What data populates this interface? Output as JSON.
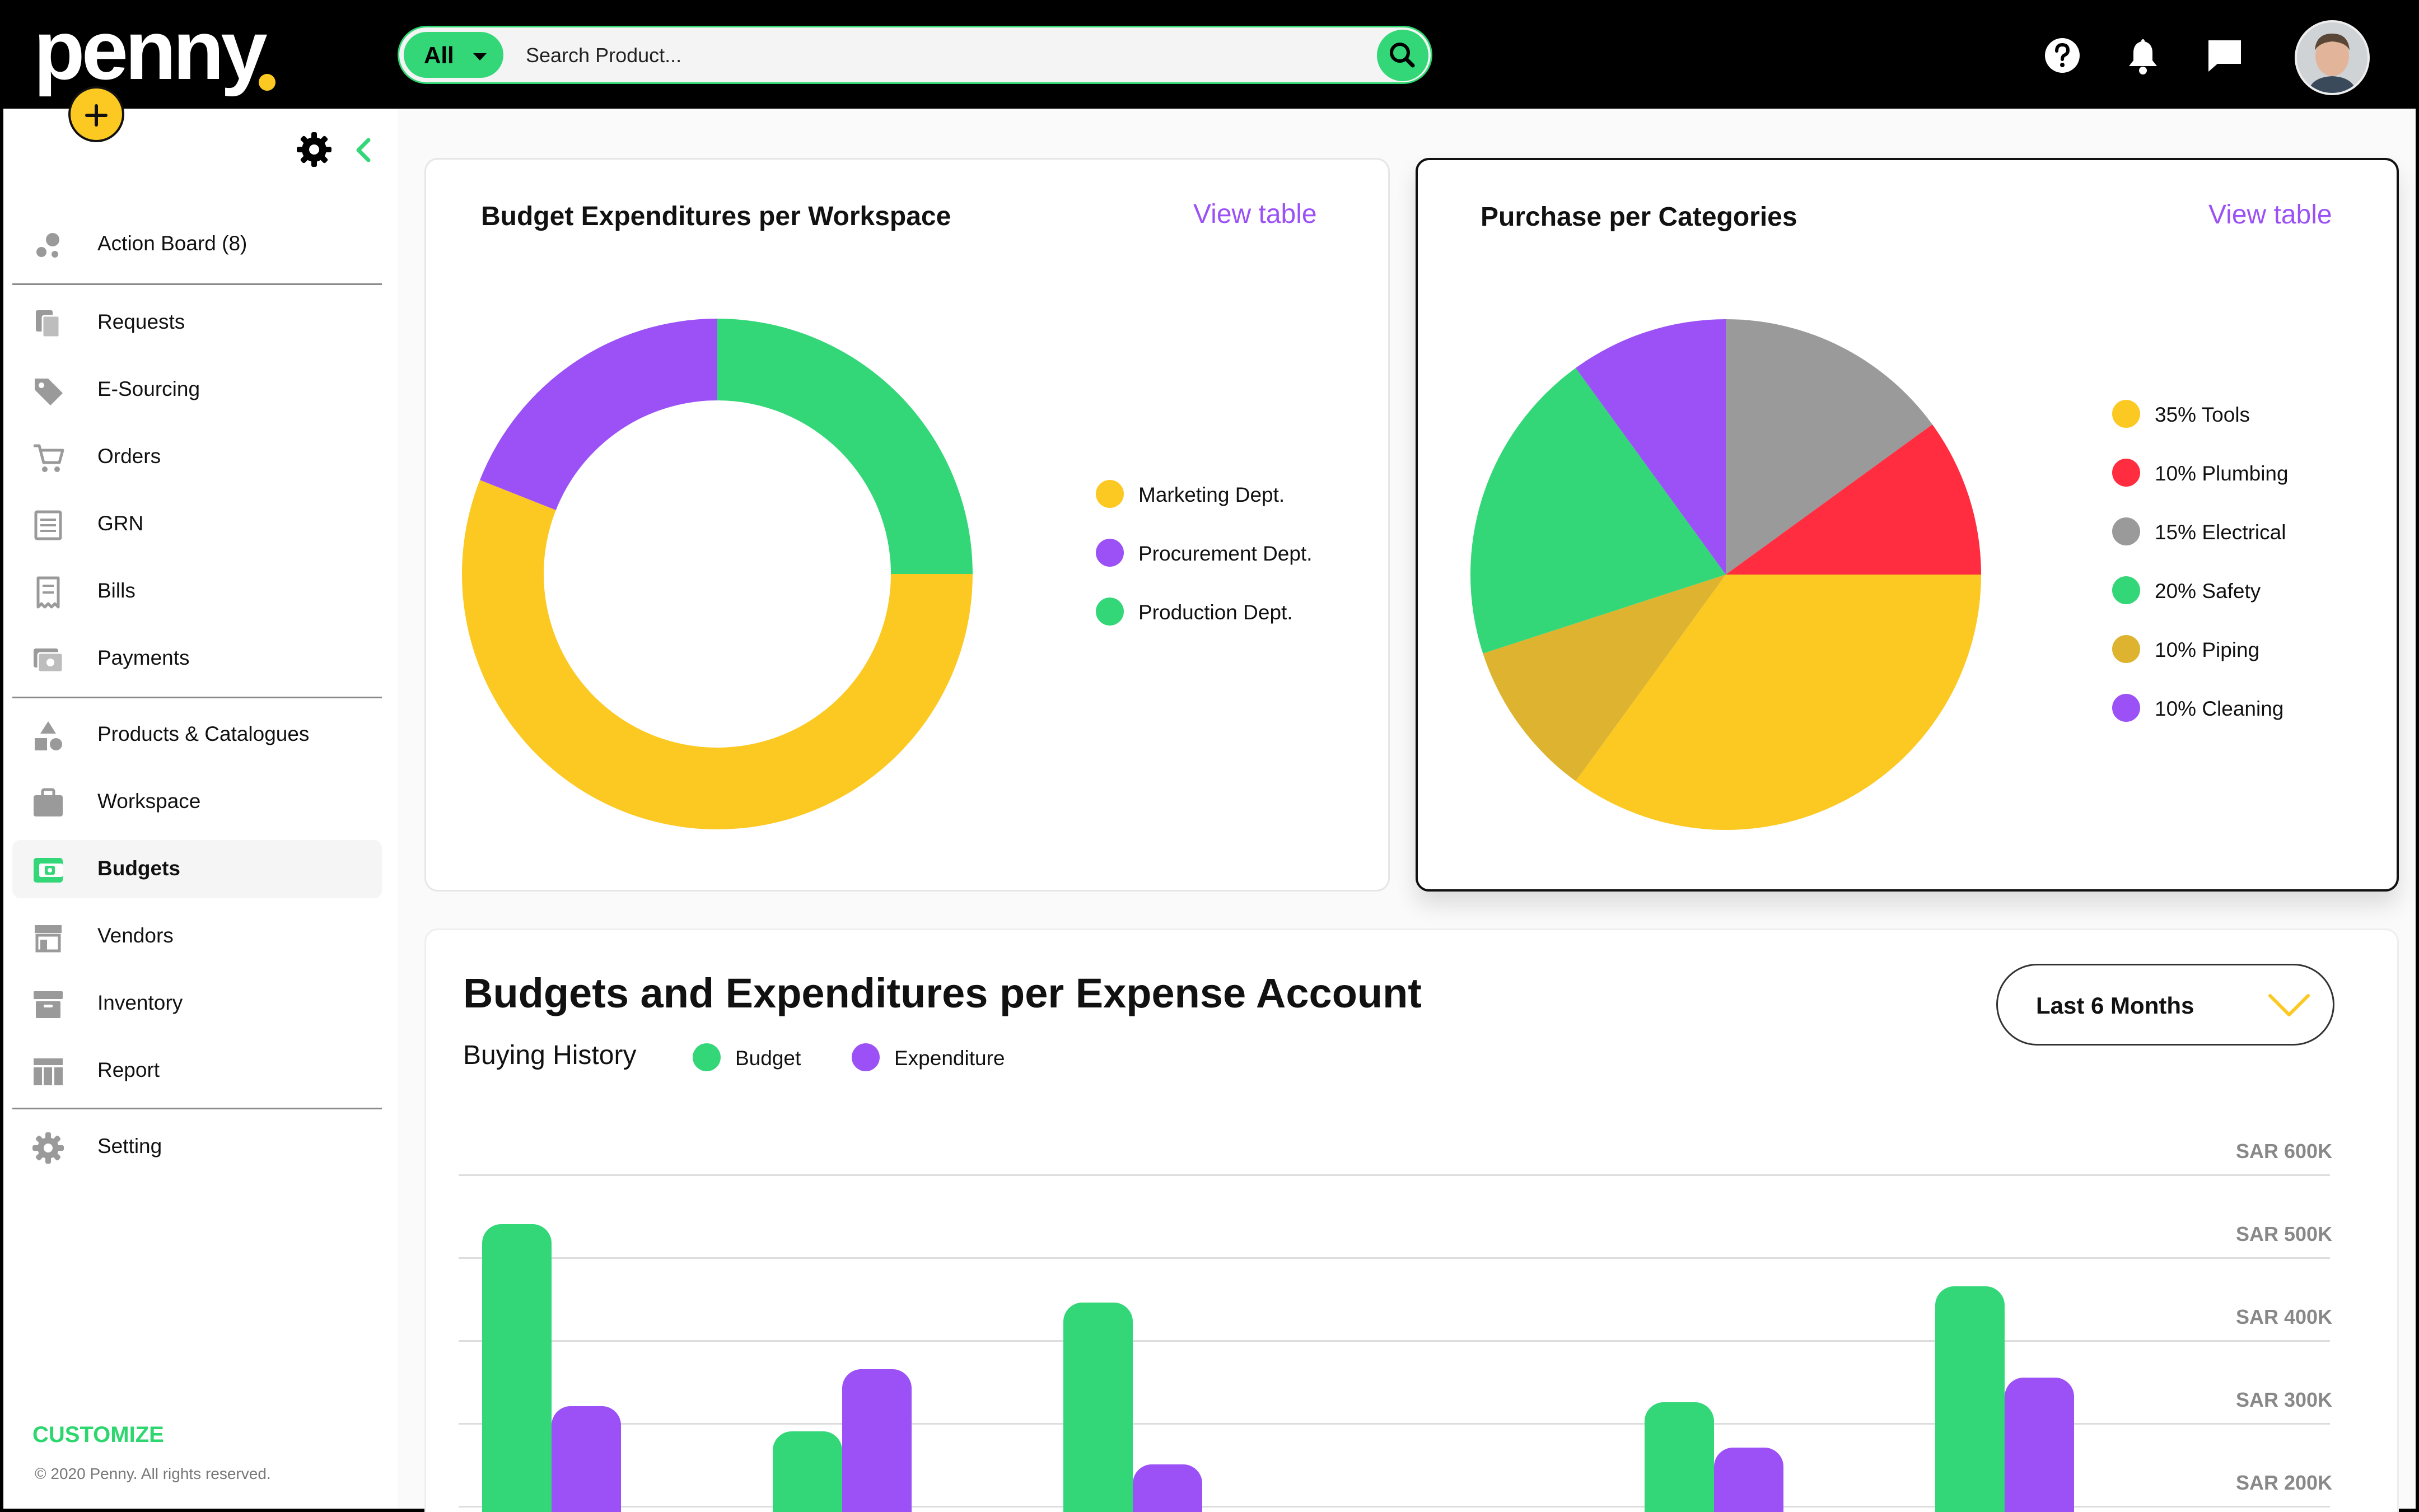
{
  "app": {
    "logo_text": "penny",
    "colors": {
      "accent_green": "#33d778",
      "accent_purple": "#9b51f5",
      "accent_yellow": "#fcc822",
      "red": "#ff2d3f",
      "gray": "#9a9a9a",
      "gold": "#ddb330"
    }
  },
  "header": {
    "search_scope": "All",
    "search_placeholder": "Search Product...",
    "icons": [
      "search-icon",
      "help-icon",
      "bell-icon",
      "chat-icon",
      "avatar"
    ]
  },
  "sidebar": {
    "items": [
      {
        "label": "Action Board (8)",
        "icon": "action-board-icon"
      },
      {
        "label": "Requests",
        "icon": "requests-icon"
      },
      {
        "label": "E-Sourcing",
        "icon": "tag-icon"
      },
      {
        "label": "Orders",
        "icon": "cart-icon"
      },
      {
        "label": "GRN",
        "icon": "grn-icon"
      },
      {
        "label": "Bills",
        "icon": "bill-icon"
      },
      {
        "label": "Payments",
        "icon": "payments-icon"
      },
      {
        "label": "Products & Catalogues",
        "icon": "shapes-icon"
      },
      {
        "label": "Workspace",
        "icon": "briefcase-icon"
      },
      {
        "label": "Budgets",
        "icon": "wallet-icon",
        "active": true
      },
      {
        "label": "Vendors",
        "icon": "store-icon"
      },
      {
        "label": "Inventory",
        "icon": "archive-icon"
      },
      {
        "label": "Report",
        "icon": "table-icon"
      },
      {
        "label": "Setting",
        "icon": "gear-icon"
      }
    ],
    "customize": "CUSTOMIZE",
    "copyright": "© 2020 Penny. All rights reserved."
  },
  "budget_card": {
    "title": "Budget Expenditures per Workspace",
    "view_table": "View table"
  },
  "purchase_card": {
    "title": "Purchase per Categories",
    "view_table": "View table"
  },
  "expense_card": {
    "title": "Budgets and Expenditures per Expense Account",
    "subtitle": "Buying History",
    "period": "Last 6 Months",
    "legend": [
      "Budget",
      "Expenditure"
    ]
  },
  "chart_data": [
    {
      "type": "pie",
      "subtype": "donut",
      "title": "Budget Expenditures per Workspace",
      "categories": [
        "Marketing Dept.",
        "Procurement Dept.",
        "Production Dept."
      ],
      "values": [
        56,
        19,
        25
      ],
      "colors": [
        "#fcc822",
        "#9b51f5",
        "#33d778"
      ],
      "legend_position": "right"
    },
    {
      "type": "pie",
      "title": "Purchase per Categories",
      "categories": [
        "35% Tools",
        "10% Plumbing",
        "15% Electrical",
        "20% Safety",
        "10% Piping",
        "10% Cleaning"
      ],
      "values": [
        35,
        10,
        15,
        20,
        10,
        10
      ],
      "colors": [
        "#fcc822",
        "#ff2d3f",
        "#9a9a9a",
        "#33d778",
        "#ddb330",
        "#9b51f5"
      ],
      "legend_position": "right"
    },
    {
      "type": "bar",
      "title": "Budgets and Expenditures per Expense Account",
      "y_ticks": [
        "SAR 600K",
        "SAR 500K",
        "SAR 400K",
        "SAR 300K",
        "SAR 200K"
      ],
      "ylim": [
        200000,
        600000
      ],
      "series": [
        {
          "name": "Budget",
          "color": "#33d778",
          "values": [
            540000,
            290000,
            445000,
            null,
            325000,
            465000
          ]
        },
        {
          "name": "Expenditure",
          "color": "#9b51f5",
          "values": [
            320000,
            365000,
            250000,
            null,
            270000,
            355000
          ]
        }
      ],
      "grid": true,
      "legend_position": "top-left"
    }
  ]
}
